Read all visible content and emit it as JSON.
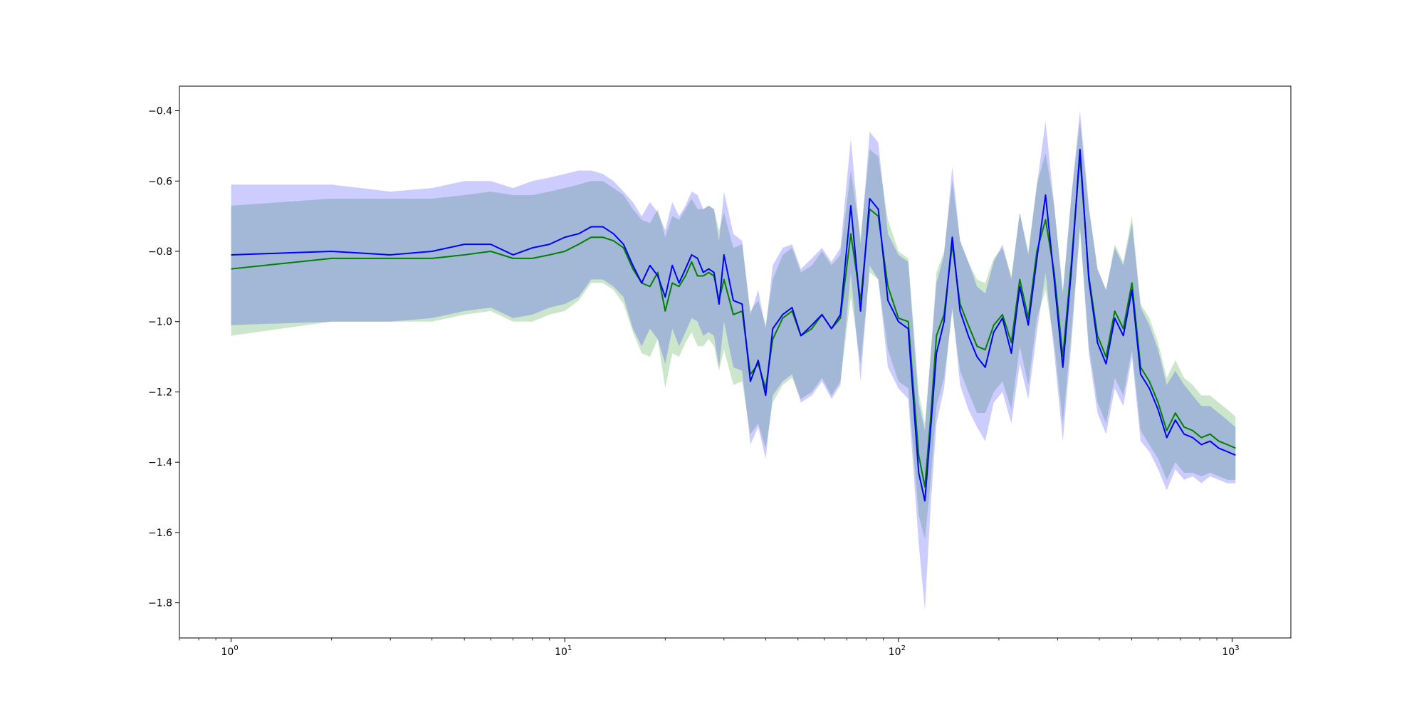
{
  "chart_data": {
    "type": "line",
    "title": "",
    "xlabel": "",
    "ylabel": "",
    "xscale": "log",
    "xlim": [
      0.7,
      1500
    ],
    "ylim": [
      -1.9,
      -0.33
    ],
    "grid": false,
    "legend": "none",
    "x_ticks": [
      {
        "base": "10",
        "exp": "0",
        "value": 1
      },
      {
        "base": "10",
        "exp": "1",
        "value": 10
      },
      {
        "base": "10",
        "exp": "2",
        "value": 100
      },
      {
        "base": "10",
        "exp": "3",
        "value": 1000
      }
    ],
    "y_ticks": [
      {
        "label": "−0.4",
        "value": -0.4
      },
      {
        "label": "−0.6",
        "value": -0.6
      },
      {
        "label": "−0.8",
        "value": -0.8
      },
      {
        "label": "−1.0",
        "value": -1.0
      },
      {
        "label": "−1.2",
        "value": -1.2
      },
      {
        "label": "−1.4",
        "value": -1.4
      },
      {
        "label": "−1.6",
        "value": -1.6
      },
      {
        "label": "−1.8",
        "value": -1.8
      }
    ],
    "series": [
      {
        "color": "#008000",
        "band_color": "#008000",
        "x": [
          1,
          2,
          3,
          4,
          5,
          6,
          7,
          8,
          9,
          10,
          11,
          12,
          13,
          14,
          15,
          16,
          17,
          18,
          19,
          20,
          21,
          22,
          23,
          24,
          25,
          26,
          27,
          28,
          29,
          30,
          32,
          34,
          36,
          38,
          40,
          42,
          45,
          48,
          51,
          55,
          59,
          63,
          67,
          72,
          77,
          82,
          87,
          93,
          100,
          107,
          115,
          120,
          125,
          130,
          137,
          145,
          153,
          162,
          172,
          182,
          193,
          205,
          218,
          231,
          245,
          260,
          276,
          293,
          311,
          330,
          350,
          372,
          395,
          419,
          445,
          472,
          501,
          532,
          565,
          600,
          637,
          676,
          718,
          762,
          809,
          859,
          912,
          968,
          1024
        ],
        "y": [
          -0.85,
          -0.82,
          -0.82,
          -0.82,
          -0.81,
          -0.8,
          -0.82,
          -0.82,
          -0.81,
          -0.8,
          -0.78,
          -0.76,
          -0.76,
          -0.77,
          -0.79,
          -0.85,
          -0.89,
          -0.9,
          -0.86,
          -0.97,
          -0.89,
          -0.9,
          -0.87,
          -0.83,
          -0.87,
          -0.87,
          -0.86,
          -0.87,
          -0.94,
          -0.88,
          -0.98,
          -0.97,
          -1.15,
          -1.12,
          -1.19,
          -1.05,
          -0.99,
          -0.97,
          -1.04,
          -1.02,
          -0.98,
          -1.02,
          -0.99,
          -0.75,
          -0.94,
          -0.68,
          -0.7,
          -0.9,
          -0.99,
          -1.0,
          -1.38,
          -1.47,
          -1.27,
          -1.04,
          -0.98,
          -0.78,
          -0.95,
          -1.01,
          -1.07,
          -1.08,
          -1.01,
          -0.98,
          -1.06,
          -0.88,
          -0.99,
          -0.8,
          -0.71,
          -0.86,
          -1.1,
          -0.83,
          -0.53,
          -0.87,
          -1.04,
          -1.1,
          -0.97,
          -1.02,
          -0.89,
          -1.13,
          -1.17,
          -1.23,
          -1.31,
          -1.26,
          -1.3,
          -1.31,
          -1.33,
          -1.32,
          -1.34,
          -1.35,
          -1.36
        ],
        "band_lower": [
          -1.04,
          -1.0,
          -1.0,
          -1.0,
          -0.98,
          -0.97,
          -1.0,
          -1.0,
          -0.98,
          -0.97,
          -0.94,
          -0.89,
          -0.89,
          -0.91,
          -0.95,
          -1.03,
          -1.09,
          -1.1,
          -1.05,
          -1.19,
          -1.09,
          -1.1,
          -1.06,
          -1.03,
          -1.07,
          -1.07,
          -1.05,
          -1.07,
          -1.14,
          -1.08,
          -1.18,
          -1.17,
          -1.32,
          -1.29,
          -1.36,
          -1.23,
          -1.18,
          -1.16,
          -1.22,
          -1.2,
          -1.16,
          -1.21,
          -1.17,
          -0.93,
          -1.12,
          -0.86,
          -0.88,
          -1.08,
          -1.17,
          -1.19,
          -1.55,
          -1.62,
          -1.45,
          -1.24,
          -1.16,
          -0.97,
          -1.14,
          -1.2,
          -1.26,
          -1.26,
          -1.2,
          -1.17,
          -1.25,
          -1.07,
          -1.18,
          -0.99,
          -0.91,
          -1.06,
          -1.29,
          -1.03,
          -0.74,
          -1.07,
          -1.23,
          -1.29,
          -1.16,
          -1.21,
          -1.08,
          -1.31,
          -1.35,
          -1.39,
          -1.45,
          -1.4,
          -1.43,
          -1.43,
          -1.44,
          -1.43,
          -1.44,
          -1.45,
          -1.45
        ],
        "band_upper": [
          -0.67,
          -0.65,
          -0.65,
          -0.65,
          -0.64,
          -0.63,
          -0.64,
          -0.64,
          -0.63,
          -0.62,
          -0.61,
          -0.6,
          -0.6,
          -0.62,
          -0.64,
          -0.68,
          -0.71,
          -0.72,
          -0.68,
          -0.76,
          -0.7,
          -0.71,
          -0.68,
          -0.65,
          -0.68,
          -0.68,
          -0.67,
          -0.68,
          -0.74,
          -0.69,
          -0.79,
          -0.78,
          -0.97,
          -0.94,
          -1.01,
          -0.88,
          -0.81,
          -0.79,
          -0.86,
          -0.84,
          -0.8,
          -0.84,
          -0.81,
          -0.57,
          -0.76,
          -0.51,
          -0.53,
          -0.71,
          -0.8,
          -0.82,
          -1.2,
          -1.29,
          -1.09,
          -0.86,
          -0.8,
          -0.6,
          -0.77,
          -0.83,
          -0.88,
          -0.89,
          -0.82,
          -0.79,
          -0.87,
          -0.69,
          -0.8,
          -0.61,
          -0.52,
          -0.67,
          -0.91,
          -0.64,
          -0.43,
          -0.68,
          -0.85,
          -0.91,
          -0.78,
          -0.83,
          -0.7,
          -0.95,
          -0.99,
          -1.06,
          -1.16,
          -1.11,
          -1.16,
          -1.18,
          -1.21,
          -1.21,
          -1.23,
          -1.25,
          -1.27
        ]
      },
      {
        "color": "#0000ff",
        "band_color": "#0000ff",
        "x": [
          1,
          2,
          3,
          4,
          5,
          6,
          7,
          8,
          9,
          10,
          11,
          12,
          13,
          14,
          15,
          16,
          17,
          18,
          19,
          20,
          21,
          22,
          23,
          24,
          25,
          26,
          27,
          28,
          29,
          30,
          32,
          34,
          36,
          38,
          40,
          42,
          45,
          48,
          51,
          55,
          59,
          63,
          67,
          72,
          77,
          82,
          87,
          93,
          100,
          107,
          115,
          120,
          125,
          130,
          137,
          145,
          153,
          162,
          172,
          182,
          193,
          205,
          218,
          231,
          245,
          260,
          276,
          293,
          311,
          330,
          350,
          372,
          395,
          419,
          445,
          472,
          501,
          532,
          565,
          600,
          637,
          676,
          718,
          762,
          809,
          859,
          912,
          968,
          1024
        ],
        "y": [
          -0.81,
          -0.8,
          -0.81,
          -0.8,
          -0.78,
          -0.78,
          -0.81,
          -0.79,
          -0.78,
          -0.76,
          -0.75,
          -0.73,
          -0.73,
          -0.75,
          -0.78,
          -0.84,
          -0.89,
          -0.84,
          -0.87,
          -0.93,
          -0.84,
          -0.89,
          -0.85,
          -0.81,
          -0.82,
          -0.86,
          -0.85,
          -0.86,
          -0.95,
          -0.81,
          -0.94,
          -0.95,
          -1.17,
          -1.11,
          -1.21,
          -1.02,
          -0.98,
          -0.96,
          -1.04,
          -1.01,
          -0.98,
          -1.02,
          -0.98,
          -0.67,
          -0.97,
          -0.65,
          -0.68,
          -0.94,
          -1.0,
          -1.02,
          -1.43,
          -1.51,
          -1.3,
          -1.09,
          -1.0,
          -0.76,
          -0.97,
          -1.04,
          -1.1,
          -1.13,
          -1.03,
          -0.99,
          -1.09,
          -0.9,
          -1.01,
          -0.82,
          -0.64,
          -0.88,
          -1.13,
          -0.85,
          -0.51,
          -0.88,
          -1.06,
          -1.12,
          -0.99,
          -1.04,
          -0.91,
          -1.15,
          -1.19,
          -1.25,
          -1.33,
          -1.28,
          -1.32,
          -1.33,
          -1.35,
          -1.34,
          -1.36,
          -1.37,
          -1.38
        ],
        "band_lower": [
          -1.01,
          -1.0,
          -1.0,
          -0.99,
          -0.97,
          -0.96,
          -0.99,
          -0.98,
          -0.96,
          -0.95,
          -0.93,
          -0.88,
          -0.88,
          -0.9,
          -0.93,
          -1.02,
          -1.07,
          -1.02,
          -1.05,
          -1.12,
          -1.02,
          -1.07,
          -1.03,
          -0.99,
          -1.0,
          -1.04,
          -1.03,
          -1.04,
          -1.13,
          -1.0,
          -1.13,
          -1.14,
          -1.35,
          -1.3,
          -1.39,
          -1.21,
          -1.17,
          -1.15,
          -1.23,
          -1.21,
          -1.17,
          -1.22,
          -1.18,
          -0.86,
          -1.17,
          -0.84,
          -0.88,
          -1.13,
          -1.19,
          -1.22,
          -1.63,
          -1.82,
          -1.52,
          -1.29,
          -1.19,
          -0.96,
          -1.18,
          -1.25,
          -1.3,
          -1.34,
          -1.23,
          -1.2,
          -1.29,
          -1.12,
          -1.22,
          -1.03,
          -0.86,
          -1.09,
          -1.34,
          -1.06,
          -0.73,
          -1.09,
          -1.26,
          -1.32,
          -1.19,
          -1.24,
          -1.1,
          -1.34,
          -1.37,
          -1.42,
          -1.48,
          -1.42,
          -1.45,
          -1.44,
          -1.46,
          -1.44,
          -1.45,
          -1.46,
          -1.46
        ],
        "band_upper": [
          -0.61,
          -0.61,
          -0.63,
          -0.62,
          -0.6,
          -0.6,
          -0.62,
          -0.6,
          -0.59,
          -0.58,
          -0.57,
          -0.57,
          -0.58,
          -0.6,
          -0.63,
          -0.66,
          -0.7,
          -0.66,
          -0.69,
          -0.74,
          -0.66,
          -0.7,
          -0.67,
          -0.63,
          -0.64,
          -0.68,
          -0.67,
          -0.68,
          -0.77,
          -0.63,
          -0.75,
          -0.77,
          -0.98,
          -0.91,
          -1.02,
          -0.84,
          -0.79,
          -0.78,
          -0.85,
          -0.82,
          -0.79,
          -0.83,
          -0.79,
          -0.48,
          -0.78,
          -0.46,
          -0.49,
          -0.75,
          -0.81,
          -0.83,
          -1.23,
          -1.31,
          -1.09,
          -0.89,
          -0.81,
          -0.56,
          -0.77,
          -0.83,
          -0.9,
          -0.92,
          -0.83,
          -0.78,
          -0.88,
          -0.69,
          -0.81,
          -0.61,
          -0.43,
          -0.67,
          -0.92,
          -0.64,
          -0.4,
          -0.67,
          -0.85,
          -0.91,
          -0.79,
          -0.84,
          -0.72,
          -0.96,
          -1.01,
          -1.08,
          -1.18,
          -1.14,
          -1.18,
          -1.21,
          -1.24,
          -1.24,
          -1.26,
          -1.28,
          -1.3
        ]
      }
    ]
  }
}
